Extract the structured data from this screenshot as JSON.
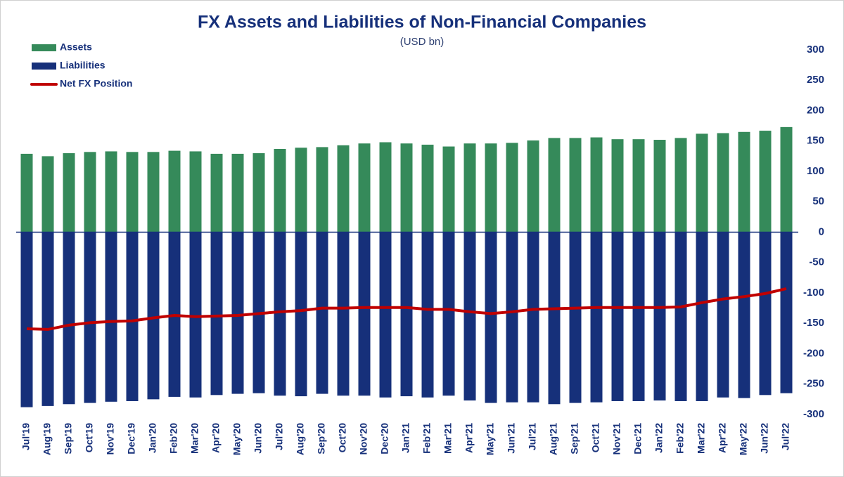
{
  "chart_data": {
    "type": "bar",
    "title": "FX Assets and Liabilities of Non-Financial Companies",
    "subtitle": "(USD bn)",
    "categories": [
      "Jul'19",
      "Aug'19",
      "Sep'19",
      "Oct'19",
      "Nov'19",
      "Dec'19",
      "Jan'20",
      "Feb'20",
      "Mar'20",
      "Apr'20",
      "May'20",
      "Jun'20",
      "Jul'20",
      "Aug'20",
      "Sep'20",
      "Oct'20",
      "Nov'20",
      "Dec'20",
      "Jan'21",
      "Feb'21",
      "Mar'21",
      "Apr'21",
      "May'21",
      "Jun'21",
      "Jul'21",
      "Aug'21",
      "Sep'21",
      "Oct'21",
      "Nov'21",
      "Dec'21",
      "Jan'22",
      "Feb'22",
      "Mar'22",
      "Apr'22",
      "May'22",
      "Jun'22",
      "Jul'22"
    ],
    "series": [
      {
        "name": "Assets",
        "type": "bar",
        "color": "#358a5a",
        "values": [
          129,
          125,
          130,
          132,
          133,
          132,
          132,
          134,
          133,
          129,
          129,
          130,
          137,
          139,
          140,
          143,
          146,
          148,
          146,
          144,
          141,
          146,
          146,
          147,
          151,
          155,
          155,
          156,
          153,
          153,
          152,
          155,
          162,
          163,
          165,
          167,
          173
        ]
      },
      {
        "name": "Liabilities",
        "type": "bar",
        "color": "#16307a",
        "values": [
          -288,
          -286,
          -283,
          -281,
          -279,
          -278,
          -275,
          -271,
          -272,
          -268,
          -266,
          -265,
          -269,
          -270,
          -266,
          -269,
          -269,
          -272,
          -270,
          -272,
          -269,
          -277,
          -281,
          -280,
          -280,
          -283,
          -281,
          -280,
          -278,
          -278,
          -277,
          -278,
          -278,
          -272,
          -273,
          -268,
          -265
        ]
      },
      {
        "name": "Net FX Position",
        "type": "line",
        "color": "#c00000",
        "values": [
          -159,
          -160,
          -153,
          -149,
          -147,
          -146,
          -141,
          -137,
          -139,
          -138,
          -137,
          -134,
          -131,
          -129,
          -125,
          -125,
          -124,
          -124,
          -124,
          -127,
          -127,
          -131,
          -134,
          -131,
          -127,
          -126,
          -125,
          -124,
          -124,
          -124,
          -124,
          -123,
          -116,
          -110,
          -106,
          -101,
          -93
        ]
      }
    ],
    "ylim": [
      -300,
      300
    ],
    "yticks": [
      -300,
      -250,
      -200,
      -150,
      -100,
      -50,
      0,
      50,
      100,
      150,
      200,
      250,
      300
    ],
    "legend": "top-left"
  }
}
